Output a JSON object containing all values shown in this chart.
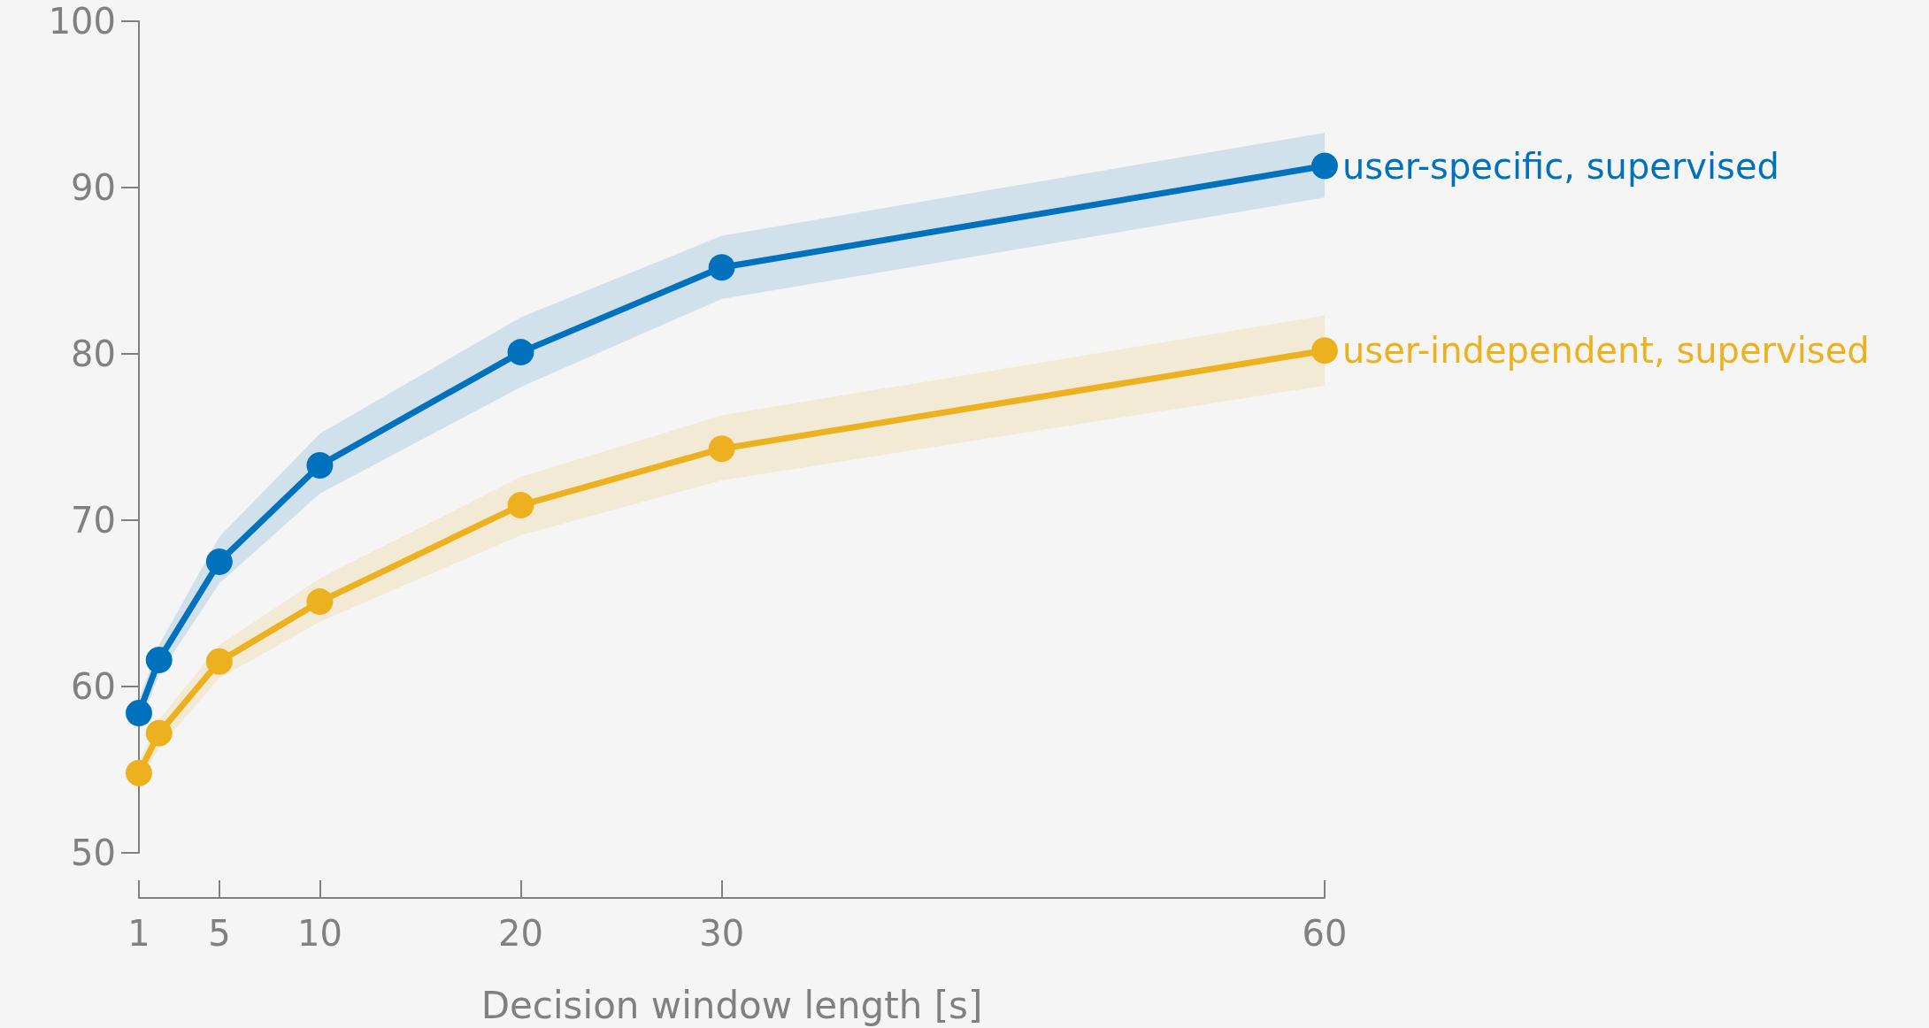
{
  "chart_data": {
    "type": "line",
    "xlabel": "Decision window length [s]",
    "x": [
      1,
      2,
      5,
      10,
      20,
      30,
      60
    ],
    "series": [
      {
        "name": "user-specific, supervised",
        "color": "#0072bd",
        "values": [
          58.4,
          61.6,
          67.5,
          73.3,
          80.1,
          85.2,
          91.3
        ],
        "lower": [
          57.6,
          60.7,
          66.2,
          71.6,
          78.0,
          83.3,
          89.4
        ],
        "upper": [
          59.2,
          62.5,
          69.0,
          75.2,
          82.2,
          87.1,
          93.3
        ]
      },
      {
        "name": "user-independent, supervised",
        "color": "#edb120",
        "values": [
          54.8,
          57.2,
          61.5,
          65.1,
          70.9,
          74.3,
          80.2
        ],
        "lower": [
          54.2,
          56.3,
          60.5,
          63.9,
          69.1,
          72.4,
          78.1
        ],
        "upper": [
          55.5,
          58.0,
          62.5,
          66.5,
          72.6,
          76.3,
          82.3
        ]
      }
    ],
    "xlim": [
      1,
      60
    ],
    "xticks": [
      1,
      5,
      10,
      20,
      30,
      60
    ],
    "ylim": [
      50,
      100
    ],
    "yticks": [
      50,
      60,
      70,
      80,
      90,
      100
    ],
    "grid": false,
    "legend": false,
    "marker": "circle",
    "line_style": "solid"
  }
}
